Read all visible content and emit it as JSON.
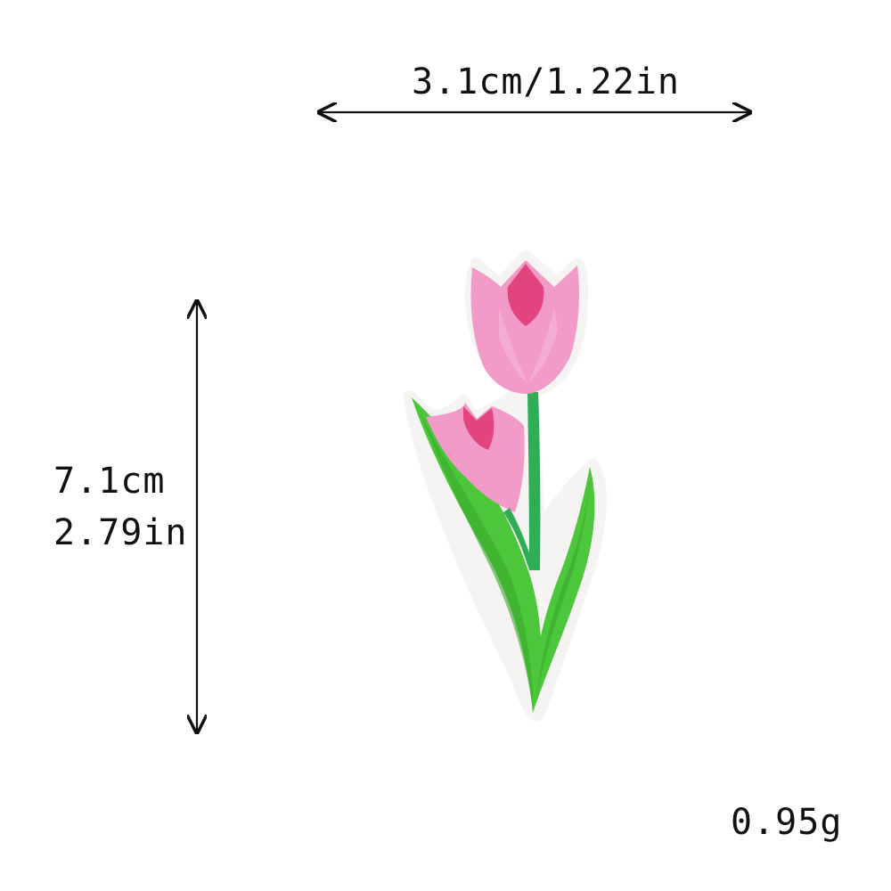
{
  "dimensions": {
    "width_label": "3.1cm/1.22in",
    "height_label_cm": "7.1cm",
    "height_label_in": "2.79in"
  },
  "weight_label": "0.95g",
  "colors": {
    "petal_pink": "#f29ac8",
    "petal_dark": "#e2457e",
    "leaf_green": "#4cc63a",
    "stem_green": "#2fae55",
    "patch_border": "#f6f3f3",
    "arrow": "#111111"
  },
  "image": {
    "subject": "tulip-embroidered-patch-icon"
  }
}
